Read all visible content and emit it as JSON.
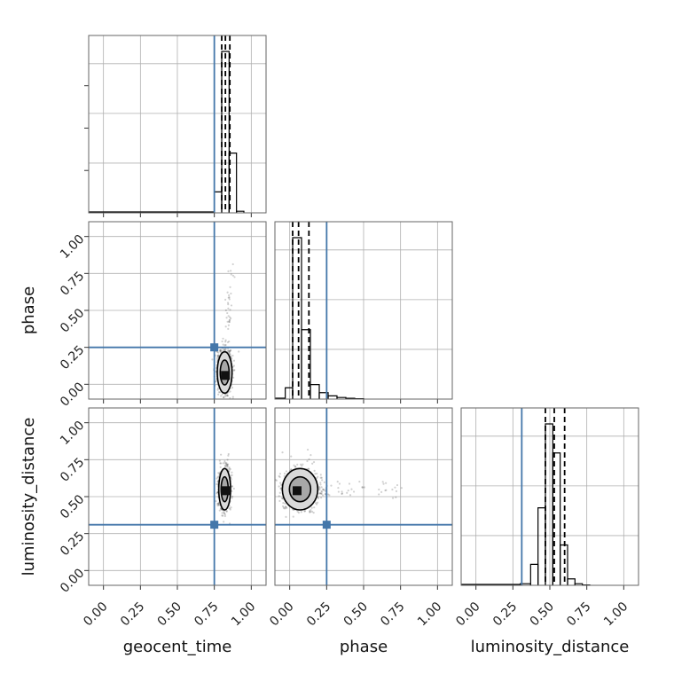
{
  "chart_data": {
    "type": "corner",
    "parameters": [
      "geocent_time",
      "phase",
      "luminosity_distance"
    ],
    "axis_range": [
      -0.1,
      1.1
    ],
    "tick_values": [
      0.0,
      0.25,
      0.5,
      0.75,
      1.0
    ],
    "tick_labels": [
      "0.00",
      "0.25",
      "0.50",
      "0.75",
      "1.00"
    ],
    "grid": true,
    "truth_color": "#4477aa",
    "truths": {
      "geocent_time": 0.75,
      "phase": 0.25,
      "luminosity_distance": 0.31
    },
    "histograms": {
      "geocent_time": {
        "bin_edges": [
          0.75,
          0.8,
          0.85,
          0.9,
          0.95
        ],
        "heights": [
          0.13,
          1.0,
          0.37,
          0.01
        ],
        "quantiles": [
          0.8,
          0.825,
          0.855
        ]
      },
      "phase": {
        "bin_edges": [
          -0.03,
          0.02,
          0.08,
          0.14,
          0.2,
          0.26,
          0.32,
          0.38,
          0.44,
          0.5
        ],
        "heights": [
          0.07,
          1.0,
          0.43,
          0.09,
          0.04,
          0.02,
          0.01,
          0.005,
          0.002
        ],
        "quantiles": [
          0.02,
          0.06,
          0.13
        ]
      },
      "luminosity_distance": {
        "bin_edges": [
          0.3,
          0.37,
          0.42,
          0.47,
          0.52,
          0.57,
          0.62,
          0.67,
          0.72,
          0.77
        ],
        "heights": [
          0.01,
          0.13,
          0.48,
          1.0,
          0.82,
          0.25,
          0.04,
          0.01,
          0.002
        ],
        "quantiles": [
          0.47,
          0.53,
          0.6
        ]
      }
    },
    "samples_2d": [
      {
        "x": "geocent_time",
        "y": "phase",
        "center": [
          0.82,
          0.08
        ],
        "spread": [
          0.025,
          0.07
        ],
        "tail_max": [
          0.87,
          0.78
        ],
        "density_peak": [
          0.825,
          0.06
        ]
      },
      {
        "x": "geocent_time",
        "y": "luminosity_distance",
        "center": [
          0.82,
          0.55
        ],
        "spread": [
          0.02,
          0.07
        ],
        "density_peak": [
          0.825,
          0.54
        ]
      },
      {
        "x": "phase",
        "y": "luminosity_distance",
        "center": [
          0.07,
          0.55
        ],
        "spread": [
          0.06,
          0.07
        ],
        "tail_max": [
          0.78,
          0.55
        ],
        "density_peak": [
          0.05,
          0.54
        ]
      }
    ]
  }
}
